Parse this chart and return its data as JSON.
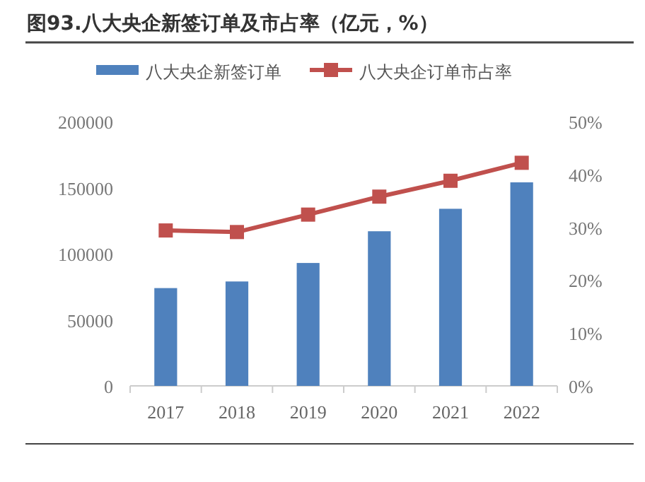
{
  "chart_data": {
    "type": "bar",
    "title": "图93.八大央企新签订单及市占率（亿元，%）",
    "categories": [
      "2017",
      "2018",
      "2019",
      "2020",
      "2021",
      "2022"
    ],
    "series": [
      {
        "name": "八大央企新签订单",
        "color": "#4f81bd",
        "values": [
          74000,
          79000,
          93000,
          117000,
          134000,
          154000
        ]
      },
      {
        "name": "八大央企订单市占率",
        "type": "line",
        "axis": "y2",
        "color": "#c0504d",
        "marker": "square",
        "values": [
          29.4,
          29.1,
          32.4,
          35.8,
          38.8,
          42.2
        ]
      }
    ],
    "ylim": [
      0,
      200000
    ],
    "yticks": [
      0,
      50000,
      100000,
      150000,
      200000
    ],
    "y2lim": [
      0,
      50
    ],
    "y2ticks": [
      {
        "value": 0,
        "label": "0%"
      },
      {
        "value": 10,
        "label": "10%"
      },
      {
        "value": 20,
        "label": "20%"
      },
      {
        "value": 30,
        "label": "30%"
      },
      {
        "value": 40,
        "label": "40%"
      },
      {
        "value": 50,
        "label": "50%"
      }
    ],
    "grid": false,
    "legend": "top"
  }
}
